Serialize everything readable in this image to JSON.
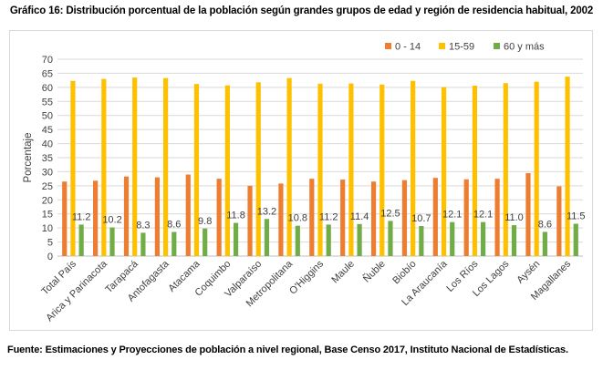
{
  "chart_data": {
    "type": "bar",
    "title": "Gráfico 16: Distribución porcentual de la población según grandes grupos de edad y región de residencia habitual, 2002",
    "ylabel": "Porcentaje",
    "xlabel": "",
    "ylim": [
      0,
      70
    ],
    "yticks": [
      0,
      5,
      10,
      15,
      20,
      25,
      30,
      35,
      40,
      45,
      50,
      55,
      60,
      65,
      70
    ],
    "grid": true,
    "legend_position": "top-right",
    "categories": [
      "Total País",
      "Arica y Parinacota",
      "Tarapacá",
      "Antofagasta",
      "Atacama",
      "Coquimbo",
      "Valparaíso",
      "Metropolitana",
      "O'Higgins",
      "Maule",
      "Ñuble",
      "Biobío",
      "La Araucanía",
      "Los Ríos",
      "Los Lagos",
      "Aysén",
      "Magallanes"
    ],
    "series": [
      {
        "name": "0 - 14",
        "color": "#ed7d31",
        "values": [
          26.5,
          26.8,
          28.3,
          28.0,
          29.0,
          27.5,
          25.0,
          25.8,
          27.5,
          27.2,
          26.5,
          27.0,
          27.8,
          27.3,
          27.5,
          29.5,
          24.8
        ]
      },
      {
        "name": "15-59",
        "color": "#ffc000",
        "values": [
          62.3,
          63.0,
          63.5,
          63.3,
          61.2,
          60.7,
          61.8,
          63.3,
          61.3,
          61.4,
          61.0,
          62.3,
          60.1,
          60.6,
          61.5,
          62.0,
          63.8
        ]
      },
      {
        "name": "60 y más",
        "color": "#70ad47",
        "values": [
          11.2,
          10.2,
          8.3,
          8.6,
          9.8,
          11.8,
          13.2,
          10.8,
          11.2,
          11.4,
          12.5,
          10.7,
          12.1,
          12.1,
          11.0,
          8.6,
          11.5
        ],
        "labels": [
          "11.2",
          "10.2",
          "8.3",
          "8.6",
          "9.8",
          "11.8",
          "13.2",
          "10.8",
          "11.2",
          "11.4",
          "12.5",
          "10.7",
          "12.1",
          "12.1",
          "11.0",
          "8.6",
          "11.5"
        ]
      }
    ]
  },
  "source": "Fuente: Estimaciones y Proyecciones de población a nivel regional, Base Censo 2017, Instituto Nacional de Estadísticas."
}
